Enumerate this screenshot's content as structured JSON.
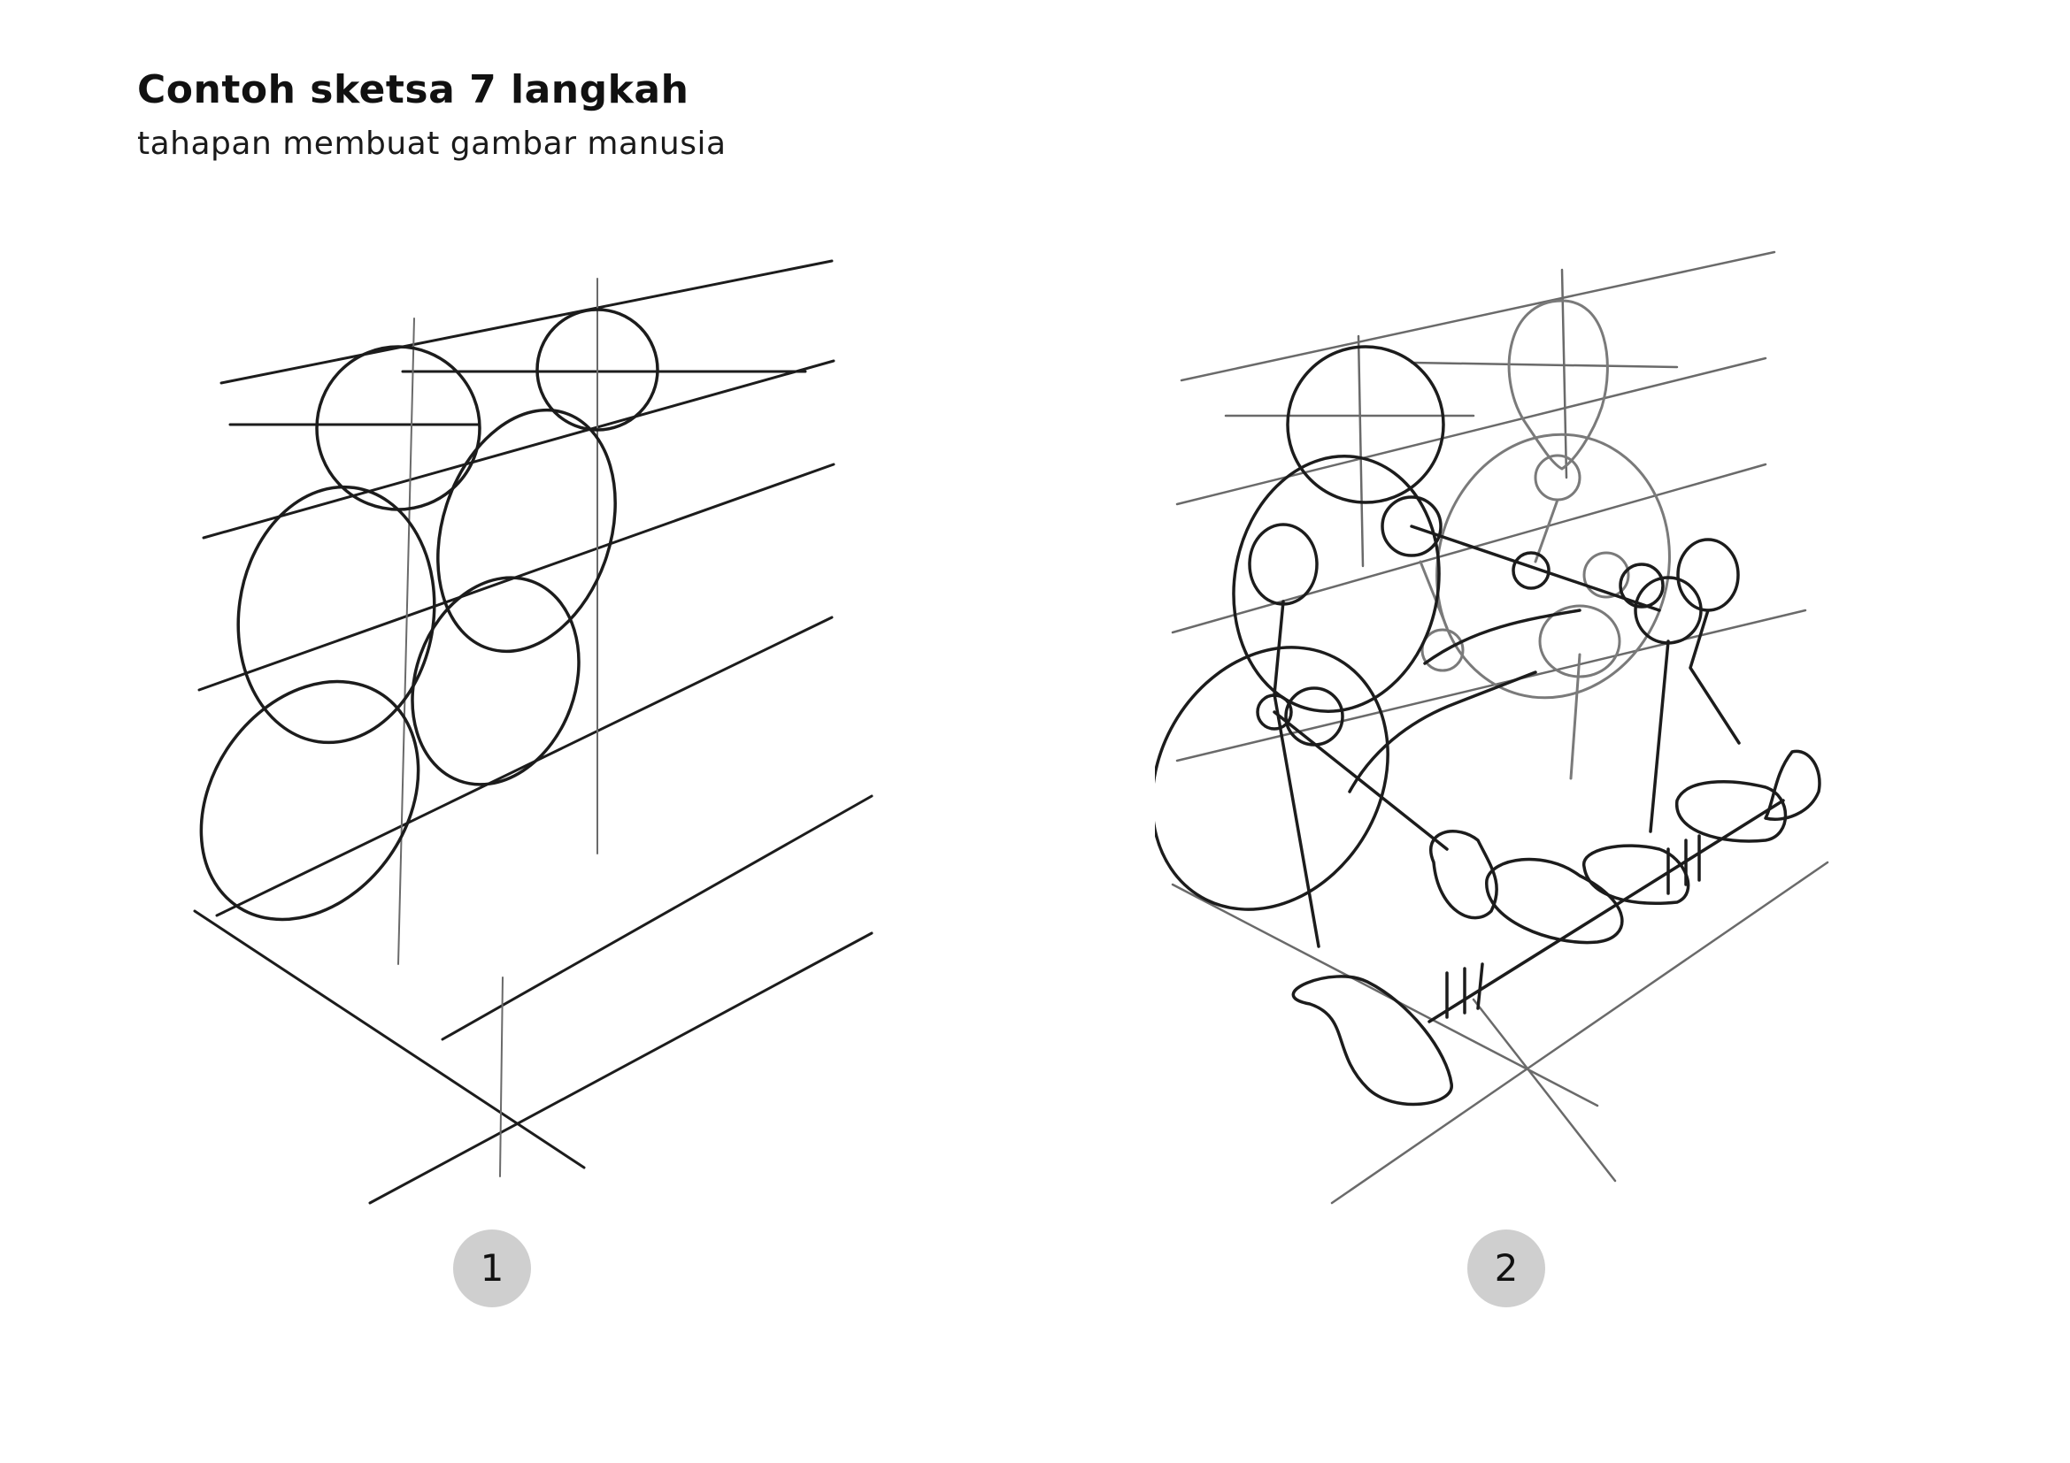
{
  "header": {
    "title": "Contoh sketsa 7 langkah",
    "subtitle": "tahapan membuat gambar manusia"
  },
  "steps": [
    {
      "number": "1"
    },
    {
      "number": "2"
    }
  ],
  "colors": {
    "ink": "#1c1c1c",
    "guide": "#8a8a8a",
    "badge": "#cfcfcf"
  }
}
